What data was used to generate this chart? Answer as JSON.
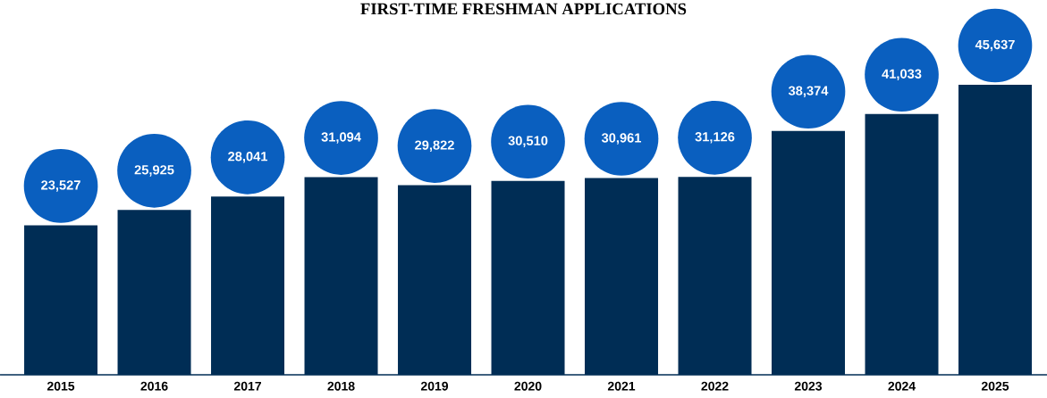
{
  "chart_data": {
    "type": "bar",
    "title": "FIRST-TIME FRESHMAN APPLICATIONS",
    "categories": [
      "2015",
      "2016",
      "2017",
      "2018",
      "2019",
      "2020",
      "2021",
      "2022",
      "2023",
      "2024",
      "2025"
    ],
    "values": [
      23527,
      25925,
      28041,
      31094,
      29822,
      30510,
      30961,
      31126,
      38374,
      41033,
      45637
    ],
    "value_labels": [
      "23,527",
      "25,925",
      "28,041",
      "31,094",
      "29,822",
      "30,510",
      "30,961",
      "31,126",
      "38,374",
      "41,033",
      "45,637"
    ],
    "color": "#002d55"
  }
}
